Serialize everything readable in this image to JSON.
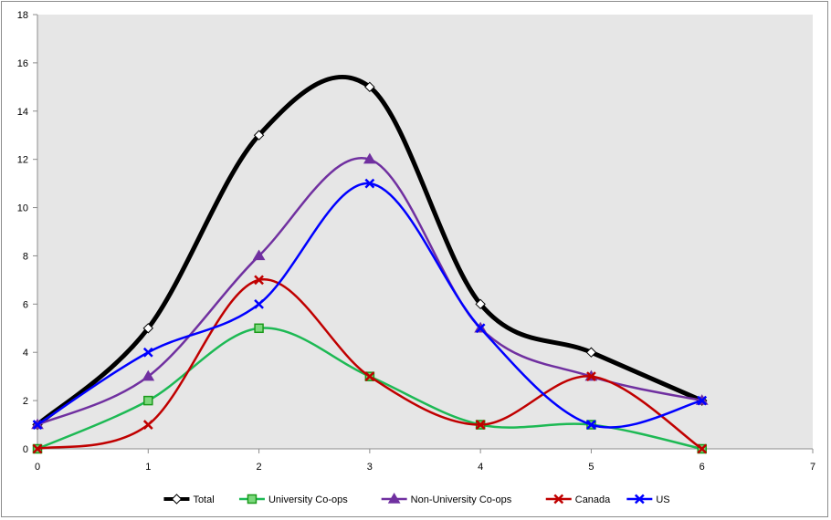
{
  "chart_data": {
    "type": "line",
    "smooth": true,
    "title": "",
    "xlabel": "",
    "ylabel": "",
    "xlim": [
      0,
      7
    ],
    "ylim": [
      0,
      18
    ],
    "x_ticks": [
      0,
      1,
      2,
      3,
      4,
      5,
      6,
      7
    ],
    "y_ticks": [
      0,
      2,
      4,
      6,
      8,
      10,
      12,
      14,
      16,
      18
    ],
    "plot_background": "#e6e6e6",
    "grid": false,
    "legend_position": "bottom",
    "x": [
      0,
      1,
      2,
      3,
      4,
      5,
      6
    ],
    "series": [
      {
        "name": "Total",
        "color": "#000000",
        "marker": "diamond",
        "marker_fill": "#ffffff",
        "marker_stroke": "#000000",
        "line_width": 5,
        "values": [
          1,
          5,
          13,
          15,
          6,
          4,
          2
        ]
      },
      {
        "name": "University Co-ops",
        "color": "#1db954",
        "marker": "square",
        "marker_fill": "#7dd87d",
        "marker_stroke": "#1a9a1a",
        "line_width": 2.5,
        "values": [
          0,
          2,
          5,
          3,
          1,
          1,
          0
        ]
      },
      {
        "name": "Non-University Co-ops",
        "color": "#7030a0",
        "marker": "triangle",
        "marker_fill": "#7030a0",
        "marker_stroke": "#7030a0",
        "line_width": 2.5,
        "values": [
          1,
          3,
          8,
          12,
          5,
          3,
          2
        ]
      },
      {
        "name": "Canada",
        "color": "#c00000",
        "marker": "x",
        "marker_fill": "#c00000",
        "marker_stroke": "#c00000",
        "line_width": 2.5,
        "values": [
          0,
          1,
          7,
          3,
          1,
          3,
          0
        ]
      },
      {
        "name": "US",
        "color": "#0000ff",
        "marker": "x",
        "marker_fill": "#0000ff",
        "marker_stroke": "#0000ff",
        "line_width": 2.5,
        "values": [
          1,
          4,
          6,
          11,
          5,
          1,
          2
        ]
      }
    ]
  }
}
